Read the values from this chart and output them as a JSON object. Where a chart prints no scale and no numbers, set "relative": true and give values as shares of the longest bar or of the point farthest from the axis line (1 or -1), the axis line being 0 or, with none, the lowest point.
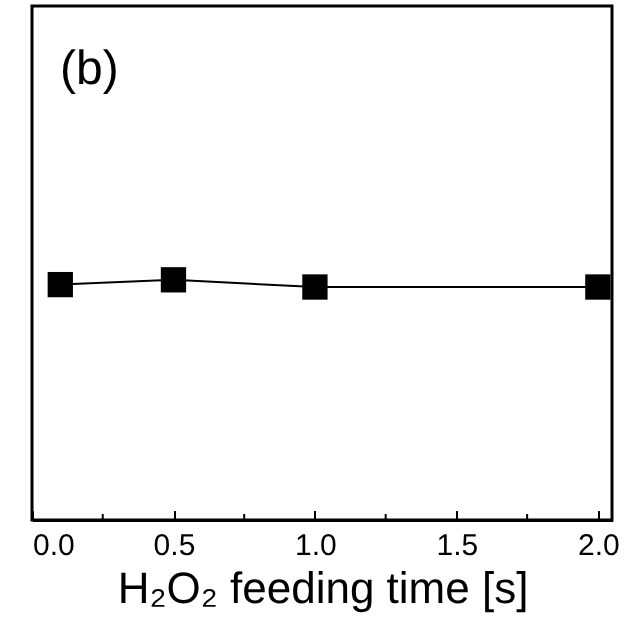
{
  "chart_data": {
    "type": "line",
    "xlabel": "H₂O₂ feeding time [s]",
    "annotations": [
      "(b)"
    ],
    "x": [
      0.1,
      0.5,
      1.0,
      2.0
    ],
    "series": [
      {
        "color": "#000000",
        "values": [
          0.98,
          1,
          0.97,
          0.97
        ]
      }
    ],
    "relative": true,
    "xlim": [
      0,
      2.05
    ],
    "xticks": [
      {
        "value": 0,
        "label": "0.0"
      },
      {
        "value": 0.25,
        "label": null
      },
      {
        "value": 0.5,
        "label": "0.5"
      },
      {
        "value": 0.75,
        "label": null
      },
      {
        "value": 1,
        "label": "1.0"
      },
      {
        "value": 1.25,
        "label": null
      },
      {
        "value": 1.5,
        "label": "1.5"
      },
      {
        "value": 1.75,
        "label": null
      },
      {
        "value": 2,
        "label": "2.0"
      }
    ],
    "marker": "square",
    "line_style": "solid",
    "grid": false
  }
}
